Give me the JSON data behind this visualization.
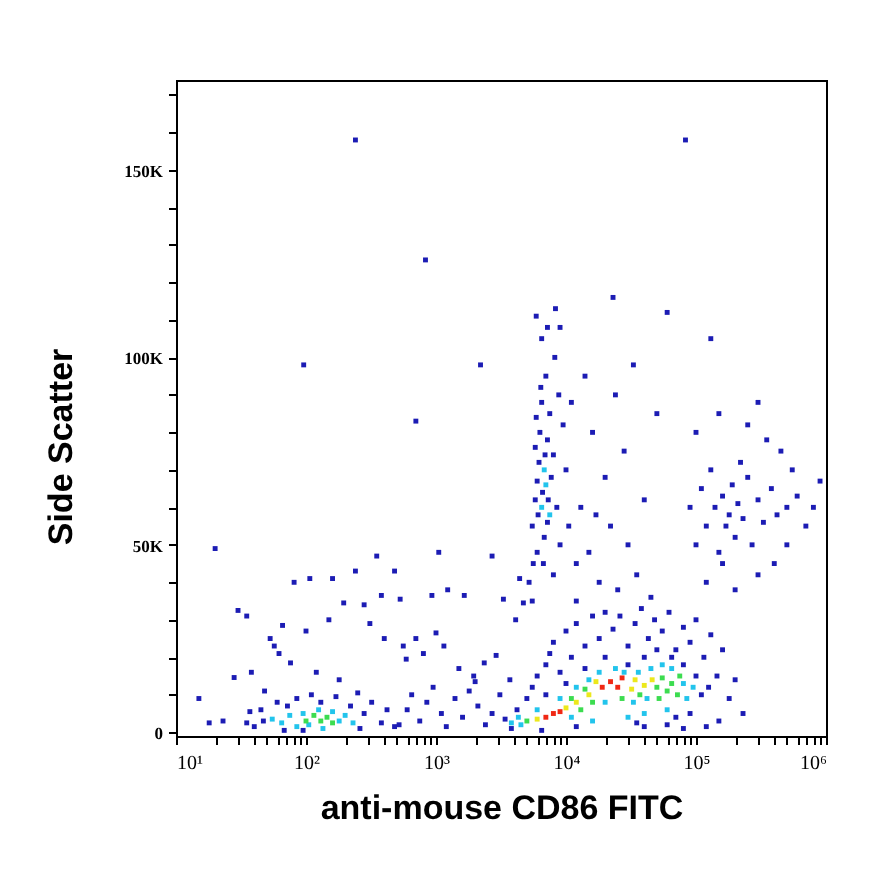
{
  "chart_data": {
    "type": "scatter",
    "xlabel": "anti-mouse CD86 FITC",
    "ylabel": "Side Scatter",
    "log": "x",
    "marker": "square",
    "xlim": [
      10,
      1000000
    ],
    "ylim": [
      -1000,
      174000
    ],
    "xticks": [
      {
        "value": 10,
        "label": "10¹"
      },
      {
        "value": 20,
        "label": null
      },
      {
        "value": 30,
        "label": null
      },
      {
        "value": 40,
        "label": null
      },
      {
        "value": 50,
        "label": null
      },
      {
        "value": 60,
        "label": null
      },
      {
        "value": 70,
        "label": null
      },
      {
        "value": 80,
        "label": null
      },
      {
        "value": 90,
        "label": null
      },
      {
        "value": 100,
        "label": "10²"
      },
      {
        "value": 200,
        "label": null
      },
      {
        "value": 300,
        "label": null
      },
      {
        "value": 400,
        "label": null
      },
      {
        "value": 500,
        "label": null
      },
      {
        "value": 600,
        "label": null
      },
      {
        "value": 700,
        "label": null
      },
      {
        "value": 800,
        "label": null
      },
      {
        "value": 900,
        "label": null
      },
      {
        "value": 1000,
        "label": "10³"
      },
      {
        "value": 2000,
        "label": null
      },
      {
        "value": 3000,
        "label": null
      },
      {
        "value": 4000,
        "label": null
      },
      {
        "value": 5000,
        "label": null
      },
      {
        "value": 6000,
        "label": null
      },
      {
        "value": 7000,
        "label": null
      },
      {
        "value": 8000,
        "label": null
      },
      {
        "value": 9000,
        "label": null
      },
      {
        "value": 10000,
        "label": "10⁴"
      },
      {
        "value": 20000,
        "label": null
      },
      {
        "value": 30000,
        "label": null
      },
      {
        "value": 40000,
        "label": null
      },
      {
        "value": 50000,
        "label": null
      },
      {
        "value": 60000,
        "label": null
      },
      {
        "value": 70000,
        "label": null
      },
      {
        "value": 80000,
        "label": null
      },
      {
        "value": 90000,
        "label": null
      },
      {
        "value": 100000,
        "label": "10⁵"
      },
      {
        "value": 200000,
        "label": null
      },
      {
        "value": 300000,
        "label": null
      },
      {
        "value": 400000,
        "label": null
      },
      {
        "value": 500000,
        "label": null
      },
      {
        "value": 600000,
        "label": null
      },
      {
        "value": 700000,
        "label": null
      },
      {
        "value": 800000,
        "label": null
      },
      {
        "value": 900000,
        "label": null
      },
      {
        "value": 1000000,
        "label": "10⁶"
      }
    ],
    "yticks": [
      0,
      {
        "value": 10000,
        "label": null
      },
      {
        "value": 20000,
        "label": null
      },
      {
        "value": 30000,
        "label": null
      },
      {
        "value": 40000,
        "label": null
      },
      {
        "value": 50000,
        "label": "50K"
      },
      {
        "value": 60000,
        "label": null
      },
      {
        "value": 70000,
        "label": null
      },
      {
        "value": 80000,
        "label": null
      },
      {
        "value": 90000,
        "label": null
      },
      {
        "value": 100000,
        "label": "100K"
      },
      {
        "value": 110000,
        "label": null
      },
      {
        "value": 120000,
        "label": null
      },
      {
        "value": 130000,
        "label": null
      },
      {
        "value": 140000,
        "label": null
      },
      {
        "value": 150000,
        "label": "150K"
      },
      {
        "value": 160000,
        "label": null
      },
      {
        "value": 170000,
        "label": null
      }
    ],
    "series": [
      {
        "color": "#1c1cb4",
        "x": [
          240,
          830,
          83000,
          96,
          2200,
          20,
          700,
          8300,
          23000,
          60000,
          5900,
          15,
          30,
          35,
          81,
          107,
          160,
          100,
          57,
          62,
          38,
          28,
          240,
          350,
          480,
          1050,
          2700,
          150,
          195,
          380,
          530,
          930,
          1230,
          1650,
          53,
          66,
          76,
          280,
          310,
          400,
          560,
          700,
          800,
          590,
          1000,
          1150,
          1950,
          2350,
          2900,
          3700,
          4100,
          3300,
          4400,
          4700,
          120,
          180,
          48,
          520,
          600,
          650,
          750,
          850,
          950,
          1100,
          1200,
          1400,
          1600,
          1800,
          2100,
          2400,
          2700,
          3100,
          3400,
          1500,
          2000,
          18,
          23,
          35,
          37,
          40,
          45,
          47,
          60,
          68,
          72,
          85,
          95,
          110,
          130,
          170,
          220,
          260,
          280,
          320,
          380,
          420,
          480,
          250,
          3800,
          4200,
          5000,
          5500,
          6000,
          6500,
          7000,
          7500,
          8000,
          9000,
          10000,
          11000,
          12000,
          14000,
          16000,
          18000,
          20000,
          23000,
          26000,
          30000,
          34000,
          38000,
          43000,
          48000,
          55000,
          62000,
          70000,
          80000,
          90000,
          100000,
          115000,
          130000,
          145000,
          160000,
          180000,
          200000,
          230000,
          150000,
          120000,
          40000,
          60000,
          80000,
          7000,
          10000,
          14000,
          20000,
          30000,
          40000,
          50000,
          65000,
          80000,
          100000,
          110000,
          125000,
          90000,
          70000,
          35000,
          12000,
          5200,
          5500,
          5800,
          6000,
          6200,
          6300,
          6500,
          6700,
          6800,
          7000,
          7200,
          7500,
          7700,
          8000,
          8200,
          8500,
          8800,
          9000,
          9500,
          6500,
          7200,
          9000,
          5500,
          6000,
          5800,
          8000,
          10000,
          10500,
          7200,
          6100,
          6600,
          7300,
          5600,
          6900,
          6400,
          5900,
          12000,
          13000,
          15000,
          16000,
          18000,
          20000,
          22000,
          25000,
          28000,
          30000,
          35000,
          40000,
          45000,
          50000,
          14000,
          24000,
          33000,
          11000,
          12000,
          17000,
          90000,
          100000,
          110000,
          120000,
          130000,
          140000,
          150000,
          160000,
          170000,
          180000,
          190000,
          200000,
          210000,
          230000,
          250000,
          270000,
          300000,
          330000,
          380000,
          420000,
          500000,
          600000,
          100000,
          150000,
          250000,
          350000,
          450000,
          550000,
          120000,
          200000,
          300000,
          400000,
          500000,
          700000,
          800000,
          160000,
          220000,
          900000,
          130000,
          300000
        ],
        "values": [
          158000,
          126000,
          158000,
          98000,
          98000,
          49000,
          83000,
          113000,
          116000,
          112000,
          111000,
          9000,
          32500,
          31000,
          40000,
          41000,
          41000,
          27000,
          23000,
          21000,
          16000,
          14600,
          43000,
          47000,
          43000,
          48000,
          47000,
          30000,
          34500,
          36500,
          35500,
          36500,
          38000,
          36500,
          25000,
          28500,
          18500,
          34000,
          29000,
          25000,
          23000,
          25000,
          21000,
          19500,
          26500,
          23000,
          15000,
          18500,
          20500,
          14000,
          30000,
          35500,
          41000,
          34500,
          16000,
          14000,
          11000,
          2000,
          6000,
          10000,
          3000,
          8000,
          12000,
          5000,
          1500,
          9000,
          4000,
          11000,
          7000,
          2000,
          5000,
          10000,
          3500,
          17000,
          13500,
          2500,
          3000,
          2500,
          5500,
          1500,
          6000,
          3000,
          8000,
          500,
          7000,
          9000,
          500,
          10000,
          8000,
          9500,
          7000,
          1000,
          5000,
          8000,
          2500,
          6000,
          1500,
          10500,
          1000,
          6000,
          9000,
          12000,
          15000,
          500,
          18000,
          21000,
          24000,
          16000,
          27000,
          20000,
          29000,
          23000,
          31000,
          25000,
          32000,
          27500,
          31000,
          23000,
          29000,
          33000,
          25000,
          30000,
          27000,
          32000,
          22000,
          28000,
          24000,
          30000,
          20000,
          26000,
          15000,
          22000,
          9000,
          14000,
          5000,
          3000,
          1500,
          1500,
          2000,
          1000,
          10000,
          13000,
          17000,
          20000,
          18000,
          20000,
          22000,
          20000,
          18000,
          15000,
          10000,
          12000,
          5000,
          4000,
          2500,
          1500,
          40000,
          55000,
          62000,
          48000,
          72000,
          80000,
          88000,
          45000,
          52000,
          95000,
          78000,
          85000,
          68000,
          74000,
          100000,
          60000,
          90000,
          50000,
          82000,
          105000,
          108000,
          108000,
          35000,
          67000,
          76000,
          42000,
          70000,
          55000,
          56000,
          58000,
          64000,
          62000,
          45000,
          74000,
          92000,
          84000,
          35000,
          60000,
          48000,
          80000,
          40000,
          68000,
          55000,
          38000,
          75000,
          50000,
          42000,
          62000,
          36000,
          85000,
          95000,
          90000,
          98000,
          88000,
          45000,
          58000,
          60000,
          50000,
          65000,
          55000,
          70000,
          60000,
          48000,
          63000,
          55000,
          58000,
          66000,
          52000,
          61000,
          57000,
          68000,
          50000,
          62000,
          56000,
          65000,
          58000,
          60000,
          63000,
          80000,
          85000,
          82000,
          78000,
          75000,
          70000,
          40000,
          38000,
          42000,
          45000,
          50000,
          55000,
          60000,
          45000,
          72000,
          67000,
          105000,
          88000
        ]
      },
      {
        "color": "#22c4ec",
        "x": [
          55,
          65,
          75,
          85,
          95,
          105,
          125,
          135,
          160,
          180,
          200,
          230,
          3800,
          4300,
          4500,
          6000,
          9000,
          11000,
          12000,
          15000,
          18000,
          20000,
          24000,
          28000,
          33000,
          36000,
          42000,
          45000,
          55000,
          65000,
          80000,
          85000,
          95000,
          60000,
          40000,
          30000,
          16000,
          6500,
          7000,
          7500,
          6800
        ],
        "values": [
          3500,
          2500,
          4500,
          1500,
          5000,
          2000,
          6000,
          1000,
          5500,
          3000,
          4500,
          2500,
          2500,
          4000,
          2000,
          6000,
          9000,
          4000,
          12000,
          14000,
          16000,
          8000,
          17000,
          16000,
          8000,
          16000,
          9000,
          17000,
          18000,
          17000,
          13000,
          9000,
          12000,
          6000,
          5000,
          4000,
          3000,
          60000,
          66000,
          58000,
          70000
        ]
      },
      {
        "color": "#3cdc50",
        "x": [
          100,
          115,
          130,
          145,
          160,
          5000,
          11000,
          13000,
          14000,
          16000,
          27000,
          37000,
          50000,
          55000,
          60000,
          65000,
          72000,
          75000,
          52000
        ],
        "values": [
          3000,
          4500,
          3000,
          4000,
          2500,
          3000,
          9000,
          6000,
          11500,
          8000,
          9000,
          10000,
          12000,
          14500,
          11000,
          13000,
          10000,
          15000,
          9000
        ]
      },
      {
        "color": "#ece81c",
        "x": [
          6000,
          10000,
          12000,
          15000,
          17000,
          32000,
          34000,
          40000,
          46000
        ],
        "values": [
          3500,
          6500,
          8000,
          10000,
          13500,
          11500,
          14000,
          12500,
          14000
        ]
      },
      {
        "color": "#f02814",
        "x": [
          7000,
          8000,
          9000,
          19000,
          22000,
          25000,
          27000
        ],
        "values": [
          4000,
          5000,
          5500,
          12000,
          13500,
          12000,
          14500
        ]
      }
    ]
  }
}
